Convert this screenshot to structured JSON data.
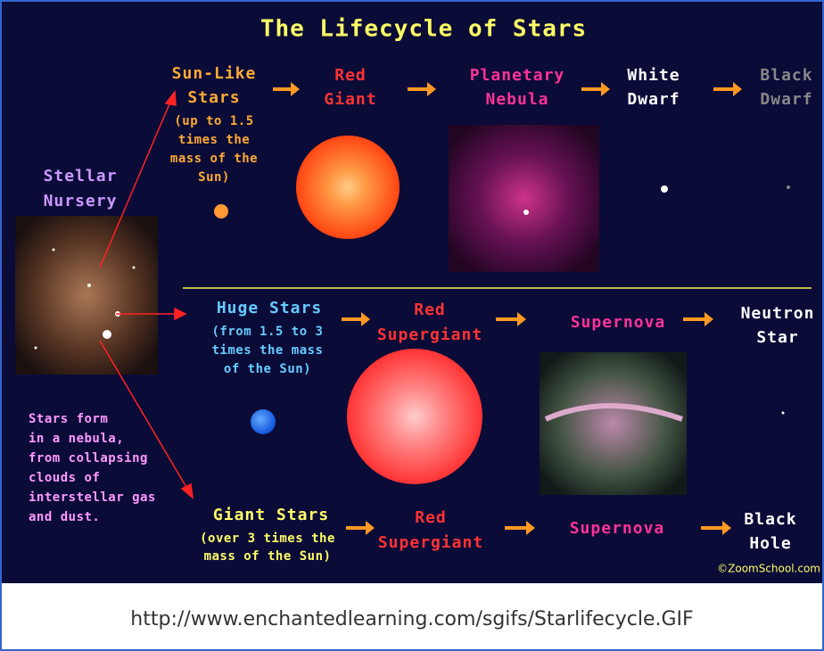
{
  "title": "The Lifecycle of Stars",
  "nursery": {
    "label": [
      "Stellar",
      "Nursery"
    ],
    "note": [
      "Stars form",
      "in a nebula,",
      "from collapsing",
      "clouds of",
      "interstellar gas",
      "and dust."
    ]
  },
  "rows": [
    {
      "name": [
        "Sun-Like",
        "Stars"
      ],
      "detail": [
        "(up to 1.5",
        "times the",
        "mass of the",
        "Sun)"
      ],
      "stages": [
        [
          "Red",
          "Giant"
        ],
        [
          "Planetary",
          "Nebula"
        ],
        [
          "White",
          "Dwarf"
        ],
        [
          "Black",
          "Dwarf"
        ]
      ]
    },
    {
      "name": [
        "Huge Stars"
      ],
      "detail": [
        "(from 1.5 to 3",
        "times the mass",
        "of the Sun)"
      ],
      "stages": [
        [
          "Red",
          "Supergiant"
        ],
        [
          "Supernova"
        ],
        [
          "Neutron",
          "Star"
        ]
      ]
    },
    {
      "name": [
        "Giant Stars"
      ],
      "detail": [
        "(over 3 times the",
        "mass of the Sun)"
      ],
      "stages": [
        [
          "Red",
          "Supergiant"
        ],
        [
          "Supernova"
        ],
        [
          "Black",
          "Hole"
        ]
      ]
    }
  ],
  "credit": "©ZoomSchool.com",
  "caption": "http://www.enchantedlearning.com/sgifs/Starlifecycle.GIF"
}
